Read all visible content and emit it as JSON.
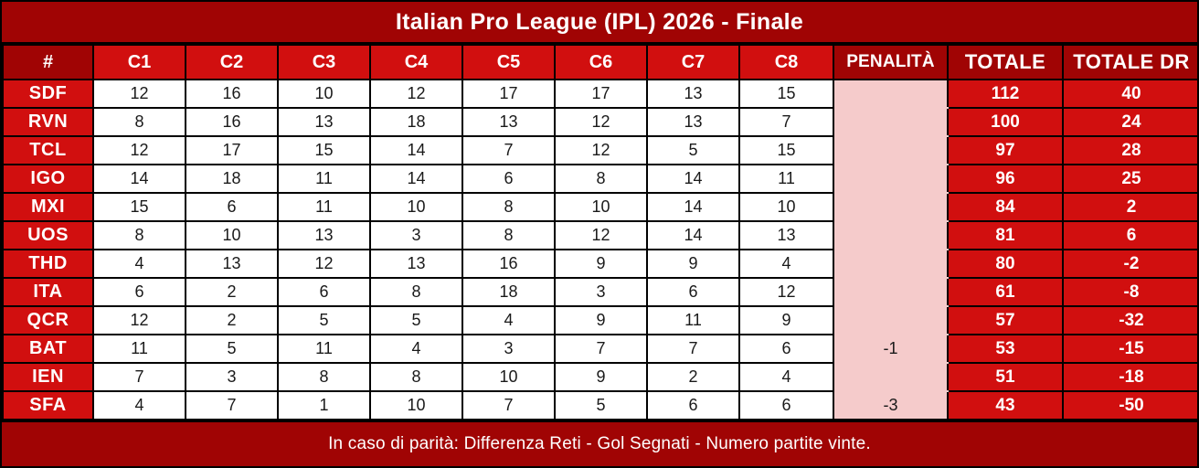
{
  "title": "Italian Pro League (IPL) 2026 - Finale",
  "footer_note": "In caso di parità: Differenza Reti - Gol Segnati - Numero partite vinte.",
  "colors": {
    "dark_red": "#a00404",
    "bright_red": "#d10f0f",
    "penalty_pink": "#f5cbcb",
    "cell_white": "#ffffff",
    "border_black": "#000000",
    "text_white": "#ffffff",
    "text_black": "#1a1a1a"
  },
  "chart_data": {
    "type": "table",
    "title": "Italian Pro League (IPL) 2026 - Finale",
    "columns": [
      "#",
      "C1",
      "C2",
      "C3",
      "C4",
      "C5",
      "C6",
      "C7",
      "C8",
      "PENALITÀ",
      "TOTALE",
      "TOTALE DR"
    ],
    "rows": [
      {
        "team": "SDF",
        "scores": [
          12,
          16,
          10,
          12,
          17,
          17,
          13,
          15
        ],
        "penalty": "",
        "total": 112,
        "total_dr": 40
      },
      {
        "team": "RVN",
        "scores": [
          8,
          16,
          13,
          18,
          13,
          12,
          13,
          7
        ],
        "penalty": "",
        "total": 100,
        "total_dr": 24
      },
      {
        "team": "TCL",
        "scores": [
          12,
          17,
          15,
          14,
          7,
          12,
          5,
          15
        ],
        "penalty": "",
        "total": 97,
        "total_dr": 28
      },
      {
        "team": "IGO",
        "scores": [
          14,
          18,
          11,
          14,
          6,
          8,
          14,
          11
        ],
        "penalty": "",
        "total": 96,
        "total_dr": 25
      },
      {
        "team": "MXI",
        "scores": [
          15,
          6,
          11,
          10,
          8,
          10,
          14,
          10
        ],
        "penalty": "",
        "total": 84,
        "total_dr": 2
      },
      {
        "team": "UOS",
        "scores": [
          8,
          10,
          13,
          3,
          8,
          12,
          14,
          13
        ],
        "penalty": "",
        "total": 81,
        "total_dr": 6
      },
      {
        "team": "THD",
        "scores": [
          4,
          13,
          12,
          13,
          16,
          9,
          9,
          4
        ],
        "penalty": "",
        "total": 80,
        "total_dr": -2
      },
      {
        "team": "ITA",
        "scores": [
          6,
          2,
          6,
          8,
          18,
          3,
          6,
          12
        ],
        "penalty": "",
        "total": 61,
        "total_dr": -8
      },
      {
        "team": "QCR",
        "scores": [
          12,
          2,
          5,
          5,
          4,
          9,
          11,
          9
        ],
        "penalty": "",
        "total": 57,
        "total_dr": -32
      },
      {
        "team": "BAT",
        "scores": [
          11,
          5,
          11,
          4,
          3,
          7,
          7,
          6
        ],
        "penalty": "-1",
        "total": 53,
        "total_dr": -15
      },
      {
        "team": "IEN",
        "scores": [
          7,
          3,
          8,
          8,
          10,
          9,
          2,
          4
        ],
        "penalty": "",
        "total": 51,
        "total_dr": -18
      },
      {
        "team": "SFA",
        "scores": [
          4,
          7,
          1,
          10,
          7,
          5,
          6,
          6
        ],
        "penalty": "-3",
        "total": 43,
        "total_dr": -50
      }
    ]
  }
}
